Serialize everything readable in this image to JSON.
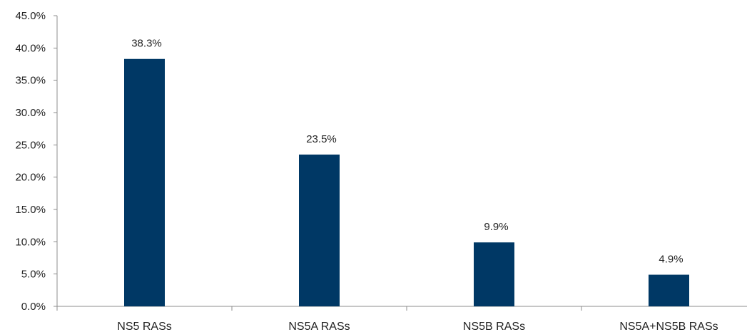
{
  "chart_data": {
    "type": "bar",
    "categories": [
      "NS5 RASs",
      "NS5A RASs",
      "NS5B RASs",
      "NS5A+NS5B RASs"
    ],
    "values": [
      38.3,
      23.5,
      9.9,
      4.9
    ],
    "data_labels": [
      "38.3%",
      "23.5%",
      "9.9%",
      "4.9%"
    ],
    "title": "",
    "xlabel": "",
    "ylabel": "",
    "ylim": [
      0,
      45
    ],
    "yticks": [
      0,
      5,
      10,
      15,
      20,
      25,
      30,
      35,
      40,
      45
    ],
    "ytick_labels": [
      "0.0%",
      "5.0%",
      "10.0%",
      "15.0%",
      "20.0%",
      "25.0%",
      "30.0%",
      "35.0%",
      "40.0%",
      "45.0%"
    ],
    "grid": false,
    "legend": "none",
    "bar_color": "#003865"
  }
}
